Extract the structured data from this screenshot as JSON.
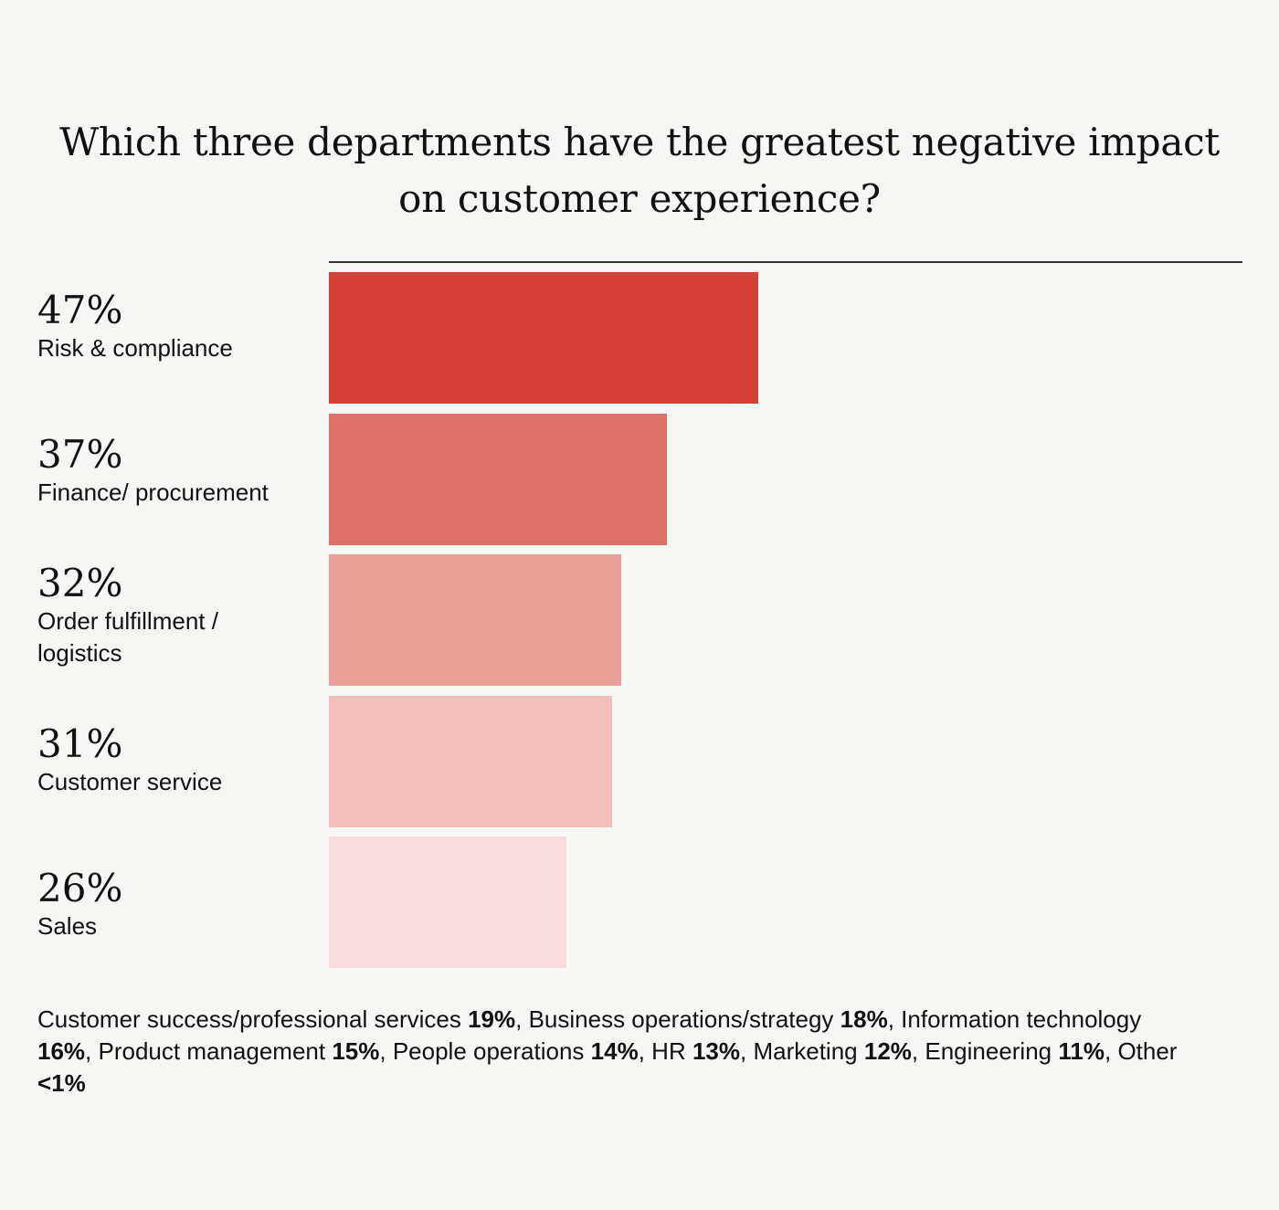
{
  "chart_data": {
    "type": "bar",
    "orientation": "horizontal",
    "title": "Which three departments have the greatest negative impact on customer experience?",
    "categories": [
      "Risk & compliance",
      "Finance/ procurement",
      "Order fulfillment / logistics",
      "Customer service",
      "Sales"
    ],
    "values": [
      47,
      37,
      32,
      31,
      26
    ],
    "value_labels": [
      "47%",
      "37%",
      "32%",
      "31%",
      "26%"
    ],
    "colors": [
      "#d63f35",
      "#e06f69",
      "#e9a099",
      "#f2bfbb",
      "#f9dcdd"
    ],
    "xlim": [
      0,
      100
    ],
    "grid": false,
    "legend": "none"
  },
  "footnote": {
    "items": [
      {
        "label": "Customer success/professional services",
        "value": "19%"
      },
      {
        "label": "Business operations/strategy",
        "value": "18%"
      },
      {
        "label": "Information technology",
        "value": "16%"
      },
      {
        "label": "Product management",
        "value": "15%"
      },
      {
        "label": "People operations",
        "value": "14%"
      },
      {
        "label": "HR",
        "value": "13%"
      },
      {
        "label": "Marketing",
        "value": "12%"
      },
      {
        "label": "Engineering",
        "value": "11%"
      },
      {
        "label": "Other",
        "value": "<1%"
      }
    ]
  }
}
